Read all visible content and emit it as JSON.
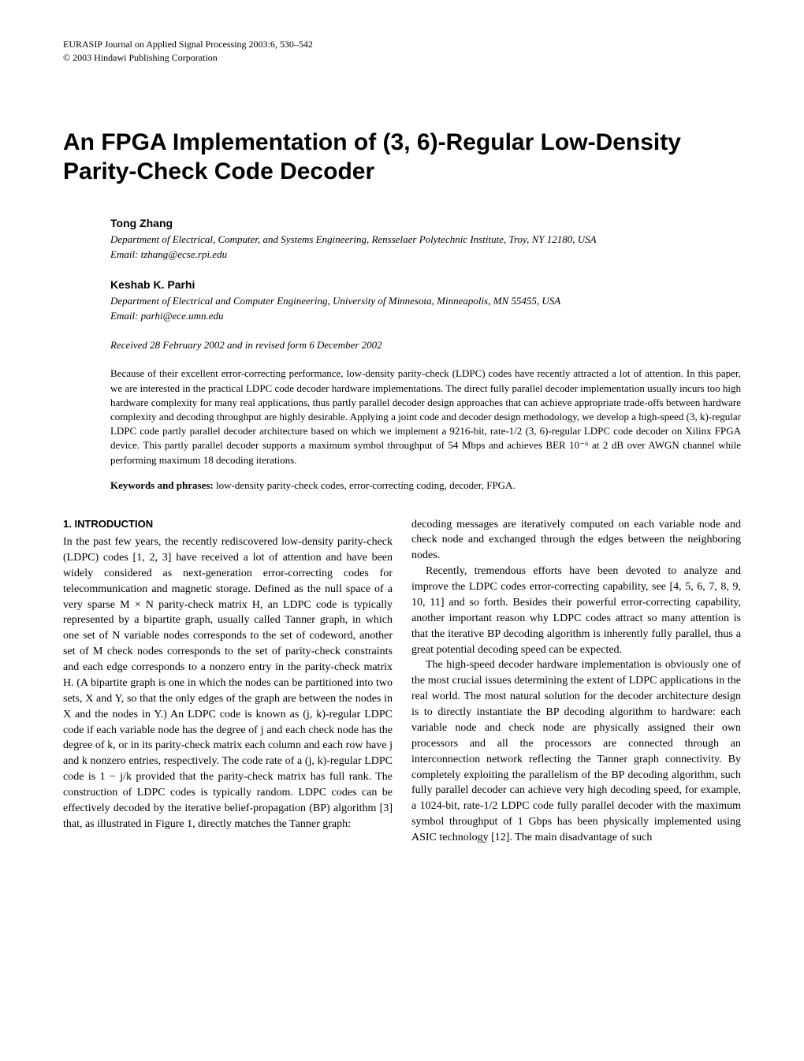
{
  "header": {
    "journal": "EURASIP Journal on Applied Signal Processing 2003:6, 530–542",
    "copyright": "© 2003 Hindawi Publishing Corporation"
  },
  "title": "An FPGA Implementation of (3, 6)-Regular Low-Density Parity-Check Code Decoder",
  "authors": [
    {
      "name": "Tong Zhang",
      "affiliation": "Department of Electrical, Computer, and Systems Engineering, Rensselaer Polytechnic Institute, Troy, NY 12180, USA",
      "email_label": "Email: ",
      "email": "tzhang@ecse.rpi.edu"
    },
    {
      "name": "Keshab K. Parhi",
      "affiliation": "Department of Electrical and Computer Engineering, University of Minnesota, Minneapolis, MN 55455, USA",
      "email_label": "Email: ",
      "email": "parhi@ece.umn.edu"
    }
  ],
  "received": "Received 28 February 2002 and in revised form 6 December 2002",
  "abstract": "Because of their excellent error-correcting performance, low-density parity-check (LDPC) codes have recently attracted a lot of attention. In this paper, we are interested in the practical LDPC code decoder hardware implementations. The direct fully parallel decoder implementation usually incurs too high hardware complexity for many real applications, thus partly parallel decoder design approaches that can achieve appropriate trade-offs between hardware complexity and decoding throughput are highly desirable. Applying a joint code and decoder design methodology, we develop a high-speed (3, k)-regular LDPC code partly parallel decoder architecture based on which we implement a 9216-bit, rate-1/2 (3, 6)-regular LDPC code decoder on Xilinx FPGA device. This partly parallel decoder supports a maximum symbol throughput of 54 Mbps and achieves BER 10⁻⁶ at 2 dB over AWGN channel while performing maximum 18 decoding iterations.",
  "keywords_label": "Keywords and phrases:",
  "keywords": " low-density parity-check codes, error-correcting coding, decoder, FPGA.",
  "section1_heading": "1.   INTRODUCTION",
  "col1_p1": "In the past few years, the recently rediscovered low-density parity-check (LDPC) codes [1, 2, 3] have received a lot of attention and have been widely considered as next-generation error-correcting codes for telecommunication and magnetic storage. Defined as the null space of a very sparse M × N parity-check matrix H, an LDPC code is typically represented by a bipartite graph, usually called Tanner graph, in which one set of N variable nodes corresponds to the set of codeword, another set of M check nodes corresponds to the set of parity-check constraints and each edge corresponds to a nonzero entry in the parity-check matrix H. (A bipartite graph is one in which the nodes can be partitioned into two sets, X and Y, so that the only edges of the graph are between the nodes in X and the nodes in Y.) An LDPC code is known as (j, k)-regular LDPC code if each variable node has the degree of j and each check node has the degree of k, or in its parity-check matrix each column and each row have j and k nonzero entries, respectively. The code rate of a (j, k)-regular LDPC code is 1 − j/k provided that the parity-check matrix has full rank. The construction of LDPC codes is typically random. LDPC codes can be effectively decoded by the iterative belief-propagation (BP) algorithm [3] that, as illustrated in Figure 1, directly matches the Tanner graph:",
  "col2_p1": "decoding messages are iteratively computed on each variable node and check node and exchanged through the edges between the neighboring nodes.",
  "col2_p2": "Recently, tremendous efforts have been devoted to analyze and improve the LDPC codes error-correcting capability, see [4, 5, 6, 7, 8, 9, 10, 11] and so forth. Besides their powerful error-correcting capability, another important reason why LDPC codes attract so many attention is that the iterative BP decoding algorithm is inherently fully parallel, thus a great potential decoding speed can be expected.",
  "col2_p3": "The high-speed decoder hardware implementation is obviously one of the most crucial issues determining the extent of LDPC applications in the real world. The most natural solution for the decoder architecture design is to directly instantiate the BP decoding algorithm to hardware: each variable node and check node are physically assigned their own processors and all the processors are connected through an interconnection network reflecting the Tanner graph connectivity. By completely exploiting the parallelism of the BP decoding algorithm, such fully parallel decoder can achieve very high decoding speed, for example, a 1024-bit, rate-1/2 LDPC code fully parallel decoder with the maximum symbol throughput of 1 Gbps has been physically implemented using ASIC technology [12]. The main disadvantage of such"
}
